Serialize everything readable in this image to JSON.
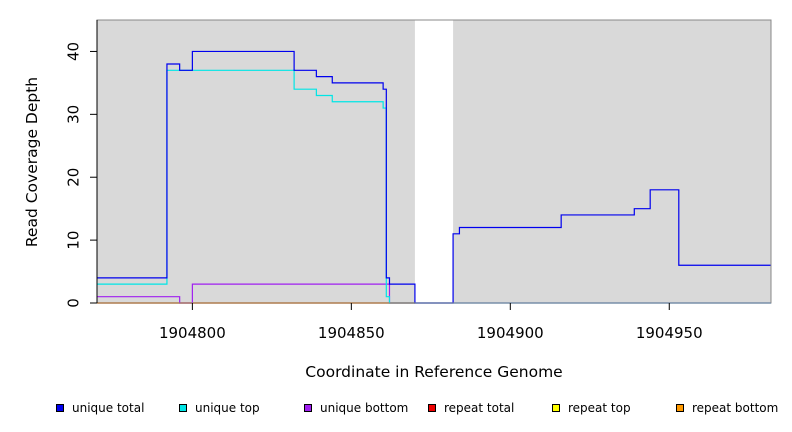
{
  "chart_data": {
    "type": "line",
    "title": "",
    "xlabel": "Coordinate in Reference Genome",
    "ylabel": "Read Coverage Depth",
    "xlim": [
      1904770,
      1904982
    ],
    "ylim": [
      0,
      45
    ],
    "x_ticks": [
      1904800,
      1904850,
      1904900,
      1904950
    ],
    "x_tick_labels": [
      "1904800",
      "1904850",
      "1904900",
      "1904950"
    ],
    "y_ticks": [
      0,
      10,
      20,
      30,
      40
    ],
    "y_tick_labels": [
      "0",
      "10",
      "20",
      "30",
      "40"
    ],
    "plot_background": "#d9d9d9",
    "gap_region": [
      1904870,
      1904882
    ],
    "grid": false,
    "legend_placement": "bottom",
    "series": [
      {
        "name": "unique total",
        "color": "#0000ee",
        "steps": [
          [
            1904770,
            4
          ],
          [
            1904792,
            38
          ],
          [
            1904796,
            37
          ],
          [
            1904800,
            40
          ],
          [
            1904832,
            37
          ],
          [
            1904839,
            36
          ],
          [
            1904844,
            35
          ],
          [
            1904860,
            34
          ],
          [
            1904861,
            4
          ],
          [
            1904862,
            3
          ],
          [
            1904870,
            0
          ],
          [
            1904882,
            11
          ],
          [
            1904884,
            12
          ],
          [
            1904916,
            14
          ],
          [
            1904939,
            15
          ],
          [
            1904944,
            18
          ],
          [
            1904953,
            6
          ],
          [
            1904982,
            6
          ]
        ]
      },
      {
        "name": "unique top",
        "color": "#00e5e5",
        "steps": [
          [
            1904770,
            3
          ],
          [
            1904792,
            37
          ],
          [
            1904832,
            34
          ],
          [
            1904839,
            33
          ],
          [
            1904844,
            32
          ],
          [
            1904860,
            31
          ],
          [
            1904861,
            1
          ],
          [
            1904862,
            0
          ],
          [
            1904870,
            0
          ],
          [
            1904882,
            0
          ],
          [
            1904982,
            0
          ]
        ]
      },
      {
        "name": "unique bottom",
        "color": "#a020f0",
        "steps": [
          [
            1904770,
            1
          ],
          [
            1904796,
            0
          ],
          [
            1904800,
            3
          ],
          [
            1904860,
            3
          ],
          [
            1904861,
            3
          ],
          [
            1904862,
            0
          ],
          [
            1904870,
            0
          ],
          [
            1904882,
            0
          ],
          [
            1904982,
            0
          ]
        ]
      },
      {
        "name": "repeat total",
        "color": "#ee0000",
        "steps": [
          [
            1904770,
            0
          ],
          [
            1904870,
            0
          ]
        ]
      },
      {
        "name": "repeat top",
        "color": "#ffff00",
        "steps": [
          [
            1904770,
            0
          ],
          [
            1904870,
            0
          ]
        ]
      },
      {
        "name": "repeat bottom",
        "color": "#ff9900",
        "steps": [
          [
            1904770,
            0
          ],
          [
            1904870,
            0
          ]
        ]
      }
    ],
    "legend": [
      {
        "label": "unique total",
        "color": "#0000ee"
      },
      {
        "label": "unique top",
        "color": "#00e5e5"
      },
      {
        "label": "unique bottom",
        "color": "#a020f0"
      },
      {
        "label": "repeat total",
        "color": "#ee0000"
      },
      {
        "label": "repeat top",
        "color": "#ffff00"
      },
      {
        "label": "repeat bottom",
        "color": "#ff9900"
      }
    ]
  }
}
